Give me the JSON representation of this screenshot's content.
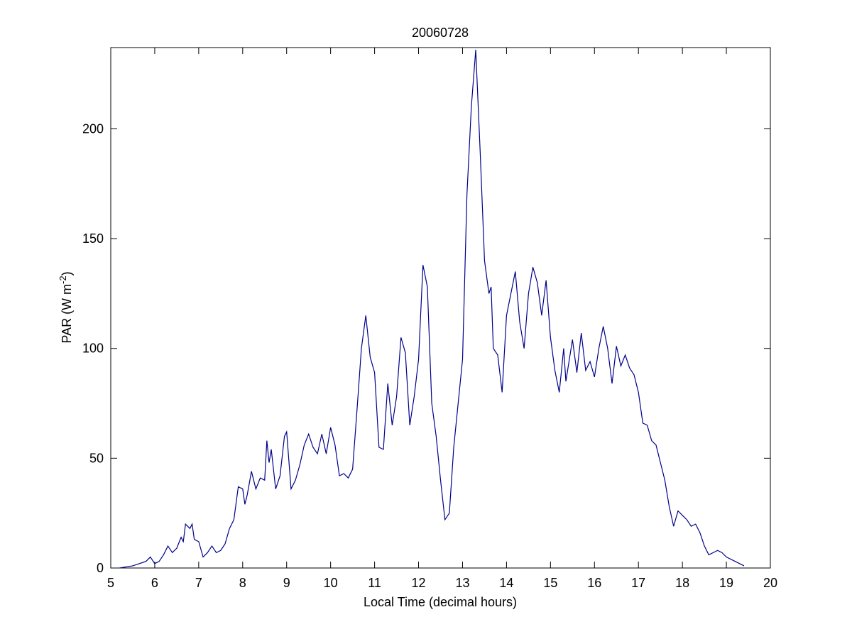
{
  "chart_data": {
    "type": "line",
    "title": "20060728",
    "xlabel": "Local Time (decimal hours)",
    "ylabel_main": "PAR (W m",
    "ylabel_sup": "-2",
    "ylabel_end": ")",
    "xlim": [
      5,
      20
    ],
    "ylim": [
      0,
      237
    ],
    "xticks": [
      5,
      6,
      7,
      8,
      9,
      10,
      11,
      12,
      13,
      14,
      15,
      16,
      17,
      18,
      19,
      20
    ],
    "yticks": [
      0,
      50,
      100,
      150,
      200
    ],
    "x": [
      5.2,
      5.5,
      5.8,
      5.9,
      6.0,
      6.1,
      6.2,
      6.3,
      6.4,
      6.5,
      6.6,
      6.65,
      6.7,
      6.8,
      6.85,
      6.9,
      7.0,
      7.1,
      7.2,
      7.3,
      7.4,
      7.5,
      7.6,
      7.7,
      7.8,
      7.9,
      8.0,
      8.05,
      8.1,
      8.2,
      8.3,
      8.4,
      8.5,
      8.55,
      8.6,
      8.65,
      8.75,
      8.85,
      8.95,
      9.0,
      9.1,
      9.2,
      9.3,
      9.4,
      9.5,
      9.6,
      9.7,
      9.8,
      9.9,
      10.0,
      10.1,
      10.2,
      10.3,
      10.4,
      10.5,
      10.6,
      10.7,
      10.8,
      10.9,
      11.0,
      11.1,
      11.2,
      11.3,
      11.4,
      11.5,
      11.6,
      11.7,
      11.8,
      11.9,
      12.0,
      12.1,
      12.2,
      12.3,
      12.4,
      12.5,
      12.6,
      12.7,
      12.8,
      12.9,
      13.0,
      13.1,
      13.2,
      13.3,
      13.4,
      13.5,
      13.6,
      13.65,
      13.7,
      13.8,
      13.9,
      14.0,
      14.1,
      14.2,
      14.3,
      14.4,
      14.5,
      14.6,
      14.7,
      14.8,
      14.9,
      15.0,
      15.1,
      15.2,
      15.3,
      15.35,
      15.5,
      15.6,
      15.7,
      15.8,
      15.9,
      16.0,
      16.1,
      16.2,
      16.3,
      16.4,
      16.5,
      16.6,
      16.7,
      16.8,
      16.9,
      17.0,
      17.1,
      17.2,
      17.3,
      17.4,
      17.5,
      17.6,
      17.7,
      17.8,
      17.9,
      18.0,
      18.1,
      18.2,
      18.3,
      18.4,
      18.5,
      18.6,
      18.7,
      18.8,
      18.9,
      19.0,
      19.2,
      19.4
    ],
    "series": [
      {
        "color": "#00008b",
        "values": [
          0,
          1,
          3,
          5,
          2,
          3,
          6,
          10,
          7,
          9,
          14,
          12,
          20,
          18,
          20,
          13,
          12,
          5,
          7,
          10,
          7,
          8,
          11,
          18,
          22,
          37,
          36,
          29,
          33,
          44,
          36,
          41,
          40,
          58,
          48,
          54,
          36,
          42,
          60,
          62,
          36,
          40,
          47,
          56,
          61,
          55,
          52,
          61,
          52,
          64,
          56,
          42,
          43,
          41,
          45,
          72,
          100,
          115,
          96,
          89,
          55,
          54,
          84,
          65,
          78,
          105,
          98,
          65,
          78,
          95,
          138,
          128,
          75,
          60,
          40,
          22,
          25,
          55,
          75,
          95,
          170,
          210,
          236,
          190,
          140,
          125,
          128,
          100,
          97,
          80,
          115,
          125,
          135,
          112,
          100,
          125,
          137,
          130,
          115,
          131,
          105,
          90,
          80,
          100,
          85,
          104,
          89,
          107,
          90,
          94,
          87,
          100,
          110,
          100,
          84,
          101,
          92,
          97,
          91,
          88,
          80,
          66,
          65,
          58,
          56,
          48,
          40,
          28,
          19,
          26,
          24,
          22,
          19,
          20,
          16,
          10,
          6,
          7,
          8,
          7,
          5,
          3,
          1
        ]
      }
    ]
  }
}
